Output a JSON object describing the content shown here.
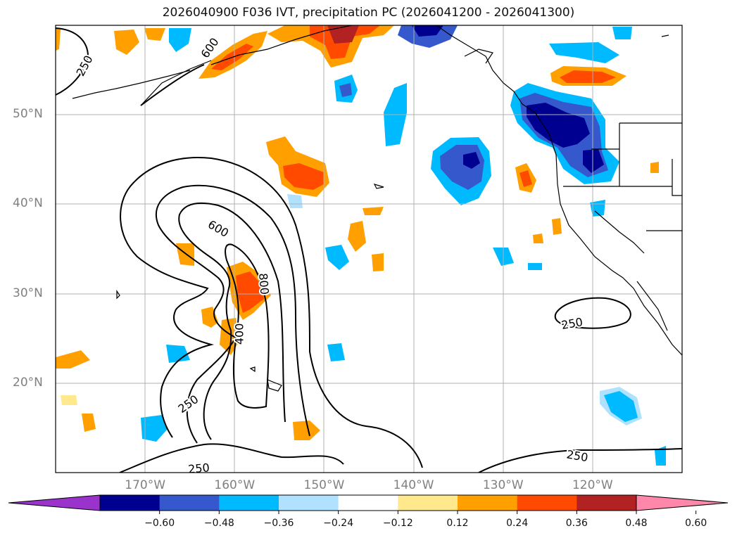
{
  "title": "2026040900 F036 IVT, precipitation PC (2026041200 - 2026041300)",
  "map": {
    "projection": "cylindrical",
    "lon_range": [
      -180,
      -110
    ],
    "lat_range": [
      10,
      60
    ],
    "lat_ticks": [
      {
        "value": 50,
        "label": "50°N"
      },
      {
        "value": 40,
        "label": "40°N"
      },
      {
        "value": 30,
        "label": "30°N"
      },
      {
        "value": 20,
        "label": "20°N"
      }
    ],
    "lon_ticks": [
      {
        "value": -170,
        "label": "170°W"
      },
      {
        "value": -160,
        "label": "160°W"
      },
      {
        "value": -150,
        "label": "150°W"
      },
      {
        "value": -140,
        "label": "140°W"
      },
      {
        "value": -130,
        "label": "130°W"
      },
      {
        "value": -120,
        "label": "120°W"
      }
    ],
    "grid": true,
    "ivt_contour_labels": [
      {
        "text": "250",
        "lon": -176.8,
        "lat": 55.5,
        "angle": -62
      },
      {
        "text": "600",
        "lon": -161.8,
        "lat": 37.3,
        "angle": 30
      },
      {
        "text": "800",
        "lon": -156.7,
        "lat": 31.1,
        "angle": 85
      },
      {
        "text": "400",
        "lon": -159.5,
        "lat": 25.5,
        "angle": -90
      },
      {
        "text": "250",
        "lon": -165.2,
        "lat": 17.7,
        "angle": -35
      },
      {
        "text": "250",
        "lon": -164.0,
        "lat": 10.5,
        "angle": -5
      },
      {
        "text": "250",
        "lon": -122.3,
        "lat": 26.7,
        "angle": -10
      },
      {
        "text": "250",
        "lon": -121.7,
        "lat": 11.9,
        "angle": 10
      },
      {
        "text": "600",
        "lon": -162.8,
        "lat": 57.5,
        "angle": -55
      }
    ]
  },
  "colorbar": {
    "levels": [
      "−0.60",
      "−0.48",
      "−0.36",
      "−0.24",
      "−0.12",
      "0.12",
      "0.24",
      "0.36",
      "0.48",
      "0.60"
    ],
    "colors": [
      "#9933cc",
      "#000090",
      "#3558cc",
      "#00baff",
      "#b0e2ff",
      "#ffffff",
      "#ffe98c",
      "#ffa000",
      "#ff4a00",
      "#b22222",
      "#ff88aa"
    ]
  }
}
